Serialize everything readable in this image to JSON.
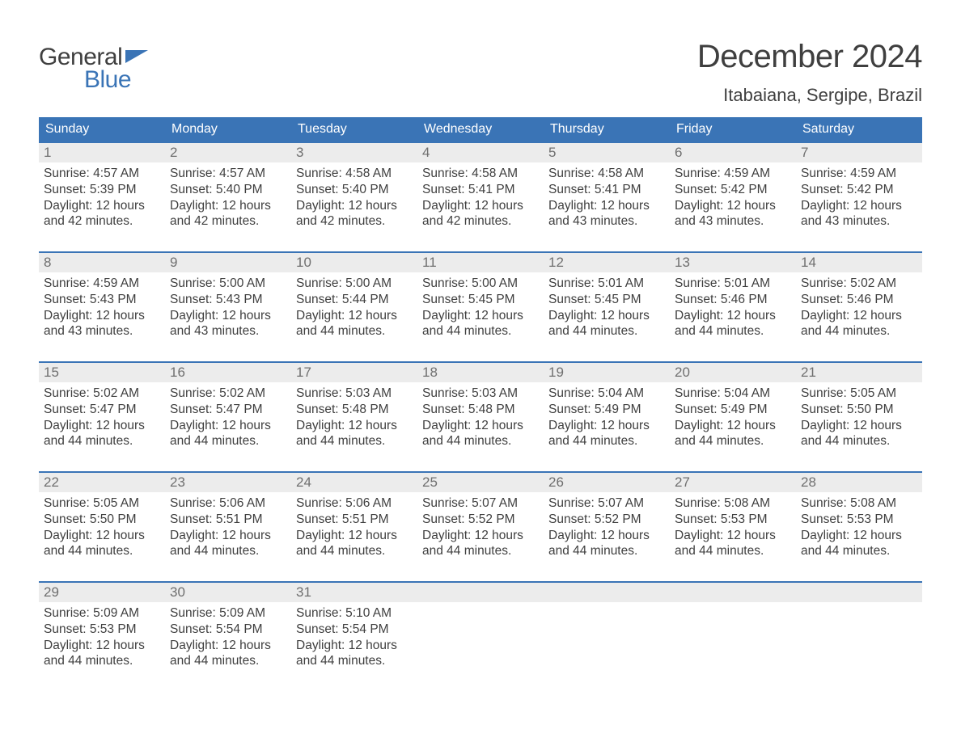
{
  "logo": {
    "top": "General",
    "bottom": "Blue",
    "icon_color": "#3a74b6"
  },
  "title": "December 2024",
  "location": "Itabaiana, Sergipe, Brazil",
  "colors": {
    "header_bg": "#3a74b6",
    "header_text": "#ffffff",
    "numrow_bg": "#ececec",
    "text": "#3f3f3f",
    "muted": "#6f6f6f",
    "rule": "#3a74b6"
  },
  "dow": [
    "Sunday",
    "Monday",
    "Tuesday",
    "Wednesday",
    "Thursday",
    "Friday",
    "Saturday"
  ],
  "weeks": [
    [
      {
        "n": "1",
        "sr": "4:57 AM",
        "ss": "5:39 PM",
        "d1": "12 hours",
        "d2": "and 42 minutes."
      },
      {
        "n": "2",
        "sr": "4:57 AM",
        "ss": "5:40 PM",
        "d1": "12 hours",
        "d2": "and 42 minutes."
      },
      {
        "n": "3",
        "sr": "4:58 AM",
        "ss": "5:40 PM",
        "d1": "12 hours",
        "d2": "and 42 minutes."
      },
      {
        "n": "4",
        "sr": "4:58 AM",
        "ss": "5:41 PM",
        "d1": "12 hours",
        "d2": "and 42 minutes."
      },
      {
        "n": "5",
        "sr": "4:58 AM",
        "ss": "5:41 PM",
        "d1": "12 hours",
        "d2": "and 43 minutes."
      },
      {
        "n": "6",
        "sr": "4:59 AM",
        "ss": "5:42 PM",
        "d1": "12 hours",
        "d2": "and 43 minutes."
      },
      {
        "n": "7",
        "sr": "4:59 AM",
        "ss": "5:42 PM",
        "d1": "12 hours",
        "d2": "and 43 minutes."
      }
    ],
    [
      {
        "n": "8",
        "sr": "4:59 AM",
        "ss": "5:43 PM",
        "d1": "12 hours",
        "d2": "and 43 minutes."
      },
      {
        "n": "9",
        "sr": "5:00 AM",
        "ss": "5:43 PM",
        "d1": "12 hours",
        "d2": "and 43 minutes."
      },
      {
        "n": "10",
        "sr": "5:00 AM",
        "ss": "5:44 PM",
        "d1": "12 hours",
        "d2": "and 44 minutes."
      },
      {
        "n": "11",
        "sr": "5:00 AM",
        "ss": "5:45 PM",
        "d1": "12 hours",
        "d2": "and 44 minutes."
      },
      {
        "n": "12",
        "sr": "5:01 AM",
        "ss": "5:45 PM",
        "d1": "12 hours",
        "d2": "and 44 minutes."
      },
      {
        "n": "13",
        "sr": "5:01 AM",
        "ss": "5:46 PM",
        "d1": "12 hours",
        "d2": "and 44 minutes."
      },
      {
        "n": "14",
        "sr": "5:02 AM",
        "ss": "5:46 PM",
        "d1": "12 hours",
        "d2": "and 44 minutes."
      }
    ],
    [
      {
        "n": "15",
        "sr": "5:02 AM",
        "ss": "5:47 PM",
        "d1": "12 hours",
        "d2": "and 44 minutes."
      },
      {
        "n": "16",
        "sr": "5:02 AM",
        "ss": "5:47 PM",
        "d1": "12 hours",
        "d2": "and 44 minutes."
      },
      {
        "n": "17",
        "sr": "5:03 AM",
        "ss": "5:48 PM",
        "d1": "12 hours",
        "d2": "and 44 minutes."
      },
      {
        "n": "18",
        "sr": "5:03 AM",
        "ss": "5:48 PM",
        "d1": "12 hours",
        "d2": "and 44 minutes."
      },
      {
        "n": "19",
        "sr": "5:04 AM",
        "ss": "5:49 PM",
        "d1": "12 hours",
        "d2": "and 44 minutes."
      },
      {
        "n": "20",
        "sr": "5:04 AM",
        "ss": "5:49 PM",
        "d1": "12 hours",
        "d2": "and 44 minutes."
      },
      {
        "n": "21",
        "sr": "5:05 AM",
        "ss": "5:50 PM",
        "d1": "12 hours",
        "d2": "and 44 minutes."
      }
    ],
    [
      {
        "n": "22",
        "sr": "5:05 AM",
        "ss": "5:50 PM",
        "d1": "12 hours",
        "d2": "and 44 minutes."
      },
      {
        "n": "23",
        "sr": "5:06 AM",
        "ss": "5:51 PM",
        "d1": "12 hours",
        "d2": "and 44 minutes."
      },
      {
        "n": "24",
        "sr": "5:06 AM",
        "ss": "5:51 PM",
        "d1": "12 hours",
        "d2": "and 44 minutes."
      },
      {
        "n": "25",
        "sr": "5:07 AM",
        "ss": "5:52 PM",
        "d1": "12 hours",
        "d2": "and 44 minutes."
      },
      {
        "n": "26",
        "sr": "5:07 AM",
        "ss": "5:52 PM",
        "d1": "12 hours",
        "d2": "and 44 minutes."
      },
      {
        "n": "27",
        "sr": "5:08 AM",
        "ss": "5:53 PM",
        "d1": "12 hours",
        "d2": "and 44 minutes."
      },
      {
        "n": "28",
        "sr": "5:08 AM",
        "ss": "5:53 PM",
        "d1": "12 hours",
        "d2": "and 44 minutes."
      }
    ],
    [
      {
        "n": "29",
        "sr": "5:09 AM",
        "ss": "5:53 PM",
        "d1": "12 hours",
        "d2": "and 44 minutes."
      },
      {
        "n": "30",
        "sr": "5:09 AM",
        "ss": "5:54 PM",
        "d1": "12 hours",
        "d2": "and 44 minutes."
      },
      {
        "n": "31",
        "sr": "5:10 AM",
        "ss": "5:54 PM",
        "d1": "12 hours",
        "d2": "and 44 minutes."
      },
      null,
      null,
      null,
      null
    ]
  ],
  "labels": {
    "sunrise": "Sunrise: ",
    "sunset": "Sunset: ",
    "daylight": "Daylight: "
  }
}
